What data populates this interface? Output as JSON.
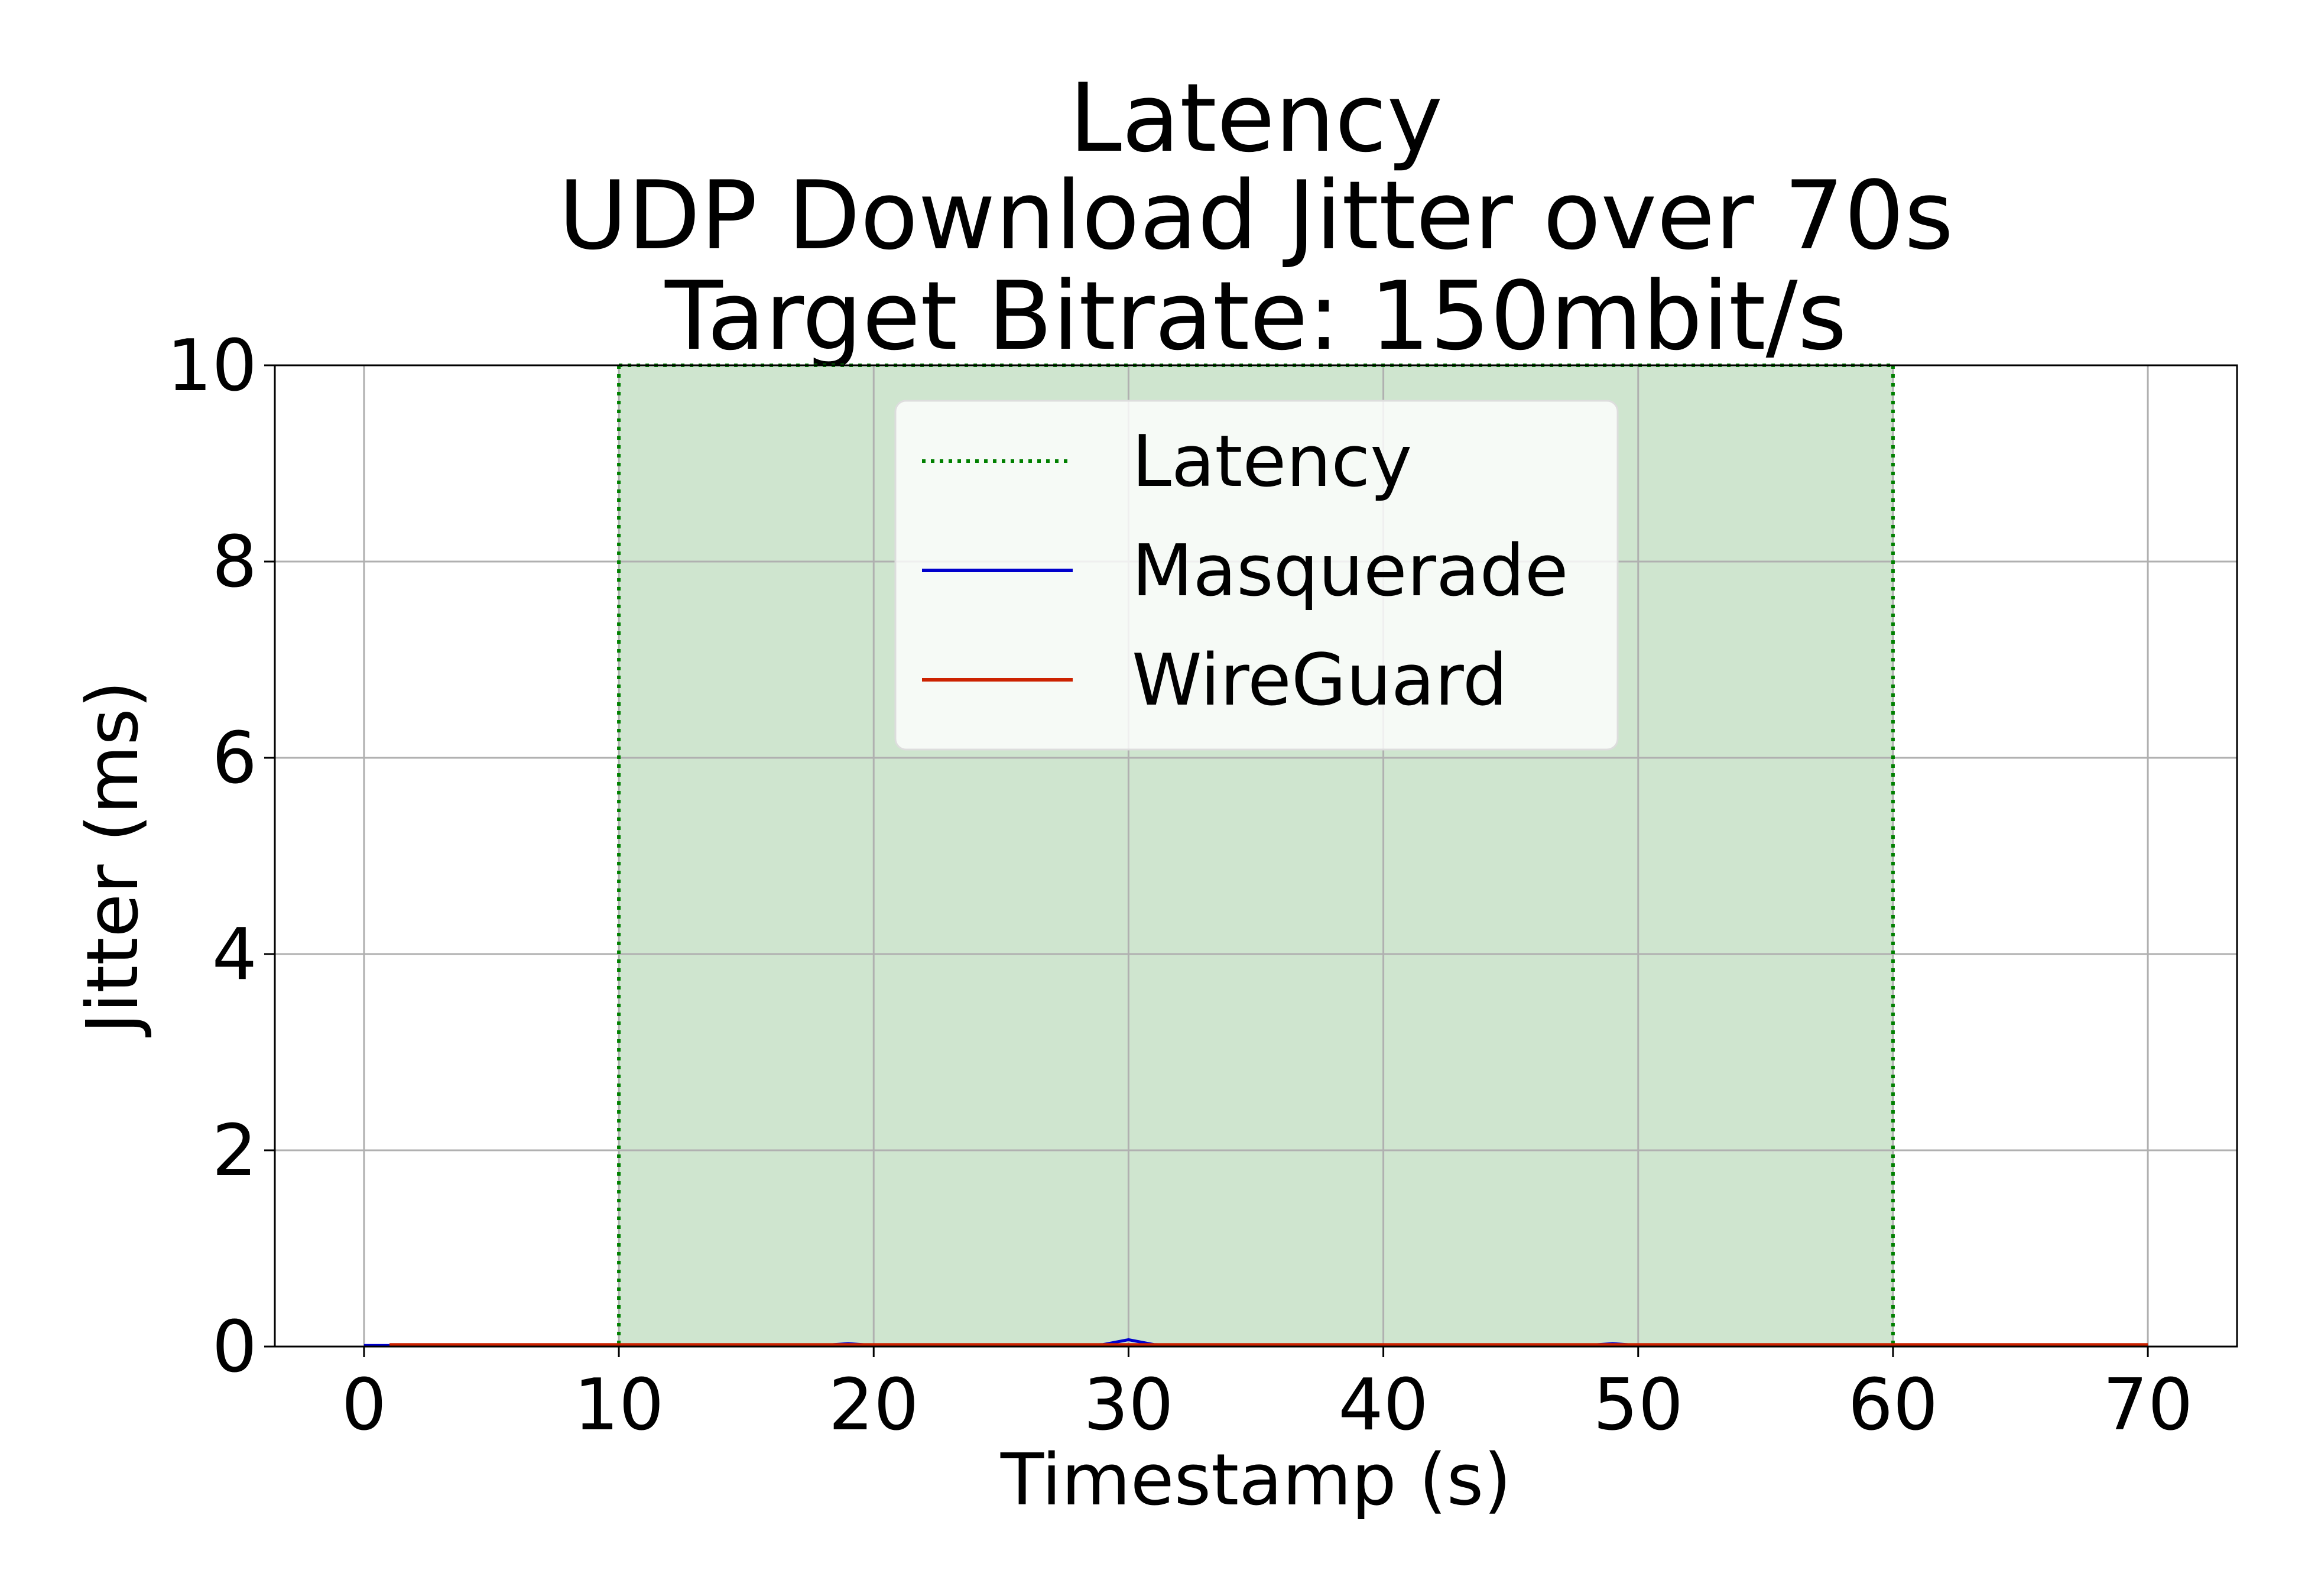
{
  "chart_data": {
    "type": "line",
    "title_lines": [
      "Latency",
      "UDP Download Jitter over 70s",
      "Target Bitrate: 150mbit/s"
    ],
    "xlabel": "Timestamp (s)",
    "ylabel": "Jitter (ms)",
    "xlim": [
      -3.5,
      73.5
    ],
    "ylim": [
      0,
      10
    ],
    "x_ticks": [
      0,
      10,
      20,
      30,
      40,
      50,
      60,
      70
    ],
    "y_ticks": [
      0,
      2,
      4,
      6,
      8,
      10
    ],
    "grid": true,
    "legend_position": "top-center",
    "shaded_region": {
      "name": "Latency",
      "x_start": 10,
      "x_end": 60,
      "color": "#008000",
      "fill": "#cfe5cf"
    },
    "series": [
      {
        "name": "Masquerade",
        "color": "#0000cc",
        "x": [
          0,
          1,
          2,
          3,
          4,
          5,
          6,
          7,
          8,
          9,
          10,
          11,
          12,
          13,
          14,
          15,
          16,
          17,
          18,
          19,
          20,
          21,
          22,
          23,
          24,
          25,
          26,
          27,
          28,
          29,
          30,
          31,
          32,
          33,
          34,
          35,
          36,
          37,
          38,
          39,
          40,
          41,
          42,
          43,
          44,
          45,
          46,
          47,
          48,
          49,
          50,
          51,
          52,
          53,
          54,
          55,
          56,
          57,
          58,
          59,
          60,
          61,
          62,
          63,
          64,
          65,
          66,
          67,
          68,
          69,
          70
        ],
        "y": [
          0.01,
          0.01,
          0.01,
          0.01,
          0.01,
          0.01,
          0.01,
          0.01,
          0.01,
          0.01,
          0.01,
          0.01,
          0.01,
          0.01,
          0.01,
          0.01,
          0.01,
          0.01,
          0.01,
          0.03,
          0.01,
          0.01,
          0.01,
          0.01,
          0.01,
          0.01,
          0.01,
          0.01,
          0.01,
          0.02,
          0.07,
          0.02,
          0.01,
          0.01,
          0.01,
          0.01,
          0.01,
          0.01,
          0.01,
          0.01,
          0.01,
          0.01,
          0.01,
          0.01,
          0.01,
          0.01,
          0.01,
          0.01,
          0.01,
          0.03,
          0.01,
          0.01,
          0.01,
          0.01,
          0.01,
          0.01,
          0.01,
          0.01,
          0.01,
          0.01,
          0.01,
          0.01,
          0.01,
          0.01,
          0.01,
          0.01,
          0.01,
          0.01,
          0.01,
          0.01,
          0.01
        ]
      },
      {
        "name": "WireGuard",
        "color": "#cc2200",
        "x": [
          1,
          2,
          3,
          4,
          5,
          6,
          7,
          8,
          9,
          10,
          11,
          12,
          13,
          14,
          15,
          16,
          17,
          18,
          19,
          20,
          21,
          22,
          23,
          24,
          25,
          26,
          27,
          28,
          29,
          30,
          31,
          32,
          33,
          34,
          35,
          36,
          37,
          38,
          39,
          40,
          41,
          42,
          43,
          44,
          45,
          46,
          47,
          48,
          49,
          50,
          51,
          52,
          53,
          54,
          55,
          56,
          57,
          58,
          59,
          60,
          61,
          62,
          63,
          64,
          65,
          66,
          67,
          68,
          69,
          70
        ],
        "y": [
          0.02,
          0.02,
          0.02,
          0.02,
          0.02,
          0.02,
          0.02,
          0.02,
          0.02,
          0.02,
          0.02,
          0.02,
          0.02,
          0.02,
          0.02,
          0.02,
          0.02,
          0.02,
          0.02,
          0.02,
          0.02,
          0.02,
          0.02,
          0.02,
          0.02,
          0.02,
          0.02,
          0.02,
          0.02,
          0.02,
          0.02,
          0.02,
          0.02,
          0.02,
          0.02,
          0.02,
          0.02,
          0.02,
          0.02,
          0.02,
          0.02,
          0.02,
          0.02,
          0.02,
          0.02,
          0.02,
          0.02,
          0.02,
          0.02,
          0.02,
          0.02,
          0.02,
          0.02,
          0.02,
          0.02,
          0.02,
          0.02,
          0.02,
          0.02,
          0.02,
          0.02,
          0.02,
          0.02,
          0.02,
          0.02,
          0.02,
          0.02,
          0.02,
          0.02,
          0.02
        ]
      }
    ],
    "legend": [
      {
        "label": "Latency",
        "style": "dotted",
        "color": "#008000"
      },
      {
        "label": "Masquerade",
        "style": "solid",
        "color": "#0000cc"
      },
      {
        "label": "WireGuard",
        "style": "solid",
        "color": "#cc2200"
      }
    ]
  }
}
